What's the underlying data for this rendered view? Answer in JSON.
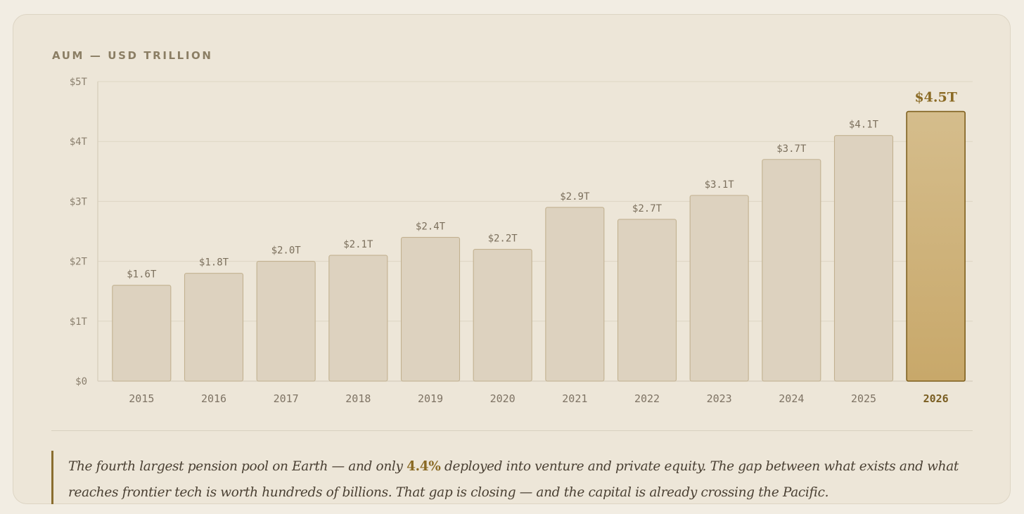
{
  "colors": {
    "bar_fill": "#ddd2bf",
    "bar_stroke": "#c2b190",
    "highlight_top": "#d5bd8c",
    "highlight_bottom": "#c8a86a",
    "highlight_stroke": "#7e5f1d",
    "grid": "#ddd5c4",
    "accent": "#8a6a24"
  },
  "chart_label": "AUM — USD TRILLION",
  "chart_data": {
    "type": "bar",
    "categories": [
      "2015",
      "2016",
      "2017",
      "2018",
      "2019",
      "2020",
      "2021",
      "2022",
      "2023",
      "2024",
      "2025",
      "2026"
    ],
    "values": [
      1.6,
      1.8,
      2.0,
      2.1,
      2.4,
      2.2,
      2.9,
      2.7,
      3.1,
      3.7,
      4.1,
      4.5
    ],
    "data_labels": [
      "$1.6T",
      "$1.8T",
      "$2.0T",
      "$2.1T",
      "$2.4T",
      "$2.2T",
      "$2.9T",
      "$2.7T",
      "$3.1T",
      "$3.7T",
      "$4.1T",
      "$4.5T"
    ],
    "highlight_index": 11,
    "ylim": [
      0,
      5
    ],
    "yticks": [
      0,
      1,
      2,
      3,
      4,
      5
    ],
    "ytick_labels": [
      "$0",
      "$1T",
      "$2T",
      "$3T",
      "$4T",
      "$5T"
    ],
    "title": "AUM — USD TRILLION",
    "grid": true
  },
  "quote": {
    "before": "The fourth largest pension pool on Earth — and only ",
    "accent": "4.4%",
    "after": " deployed into venture and private equity. The gap between what exists and what reaches frontier tech is worth hundreds of billions. That gap is closing — and the capital is already crossing the Pacific."
  }
}
